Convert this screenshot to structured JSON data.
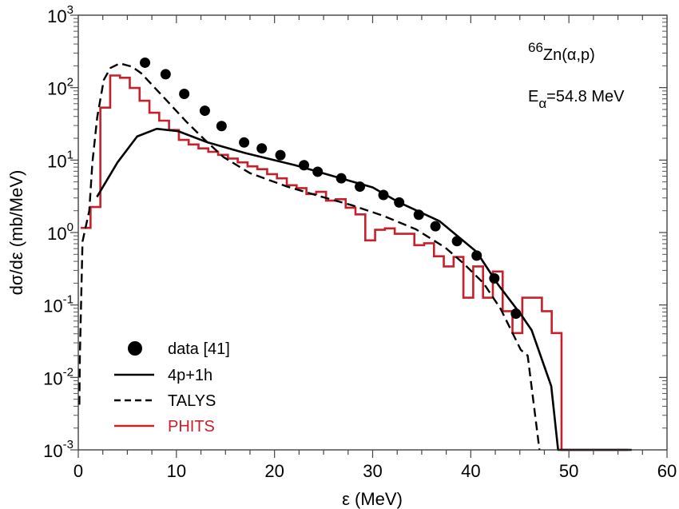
{
  "chart_data": {
    "type": "line",
    "title": "",
    "xlabel": "ε (MeV)",
    "ylabel": "dσ/dε (mb/MeV)",
    "xlim": [
      0,
      60
    ],
    "ylim": [
      0.001,
      1000
    ],
    "yscale": "log",
    "grid": false,
    "x_ticks": [
      0,
      10,
      20,
      30,
      40,
      50,
      60
    ],
    "x_tick_labels": [
      "0",
      "10",
      "20",
      "30",
      "40",
      "50",
      "60"
    ],
    "y_ticks": [
      0.001,
      0.01,
      0.1,
      1,
      10,
      100,
      1000
    ],
    "y_tick_labels": [
      {
        "base": "10",
        "exp": "-3"
      },
      {
        "base": "10",
        "exp": "-2"
      },
      {
        "base": "10",
        "exp": "-1"
      },
      {
        "base": "10",
        "exp": "0"
      },
      {
        "base": "10",
        "exp": "1"
      },
      {
        "base": "10",
        "exp": "2"
      },
      {
        "base": "10",
        "exp": "3"
      }
    ],
    "annotation": {
      "reaction_mass": "66",
      "reaction": "Zn(α,p)",
      "energy_prefix": "E",
      "energy_sub": "α",
      "energy_value": "=54.8 MeV"
    },
    "legend_position": "bottom-left",
    "series": [
      {
        "name": "data [41]",
        "kind": "scatter",
        "color": "#000000",
        "x": [
          6.8,
          8.9,
          10.8,
          12.9,
          14.6,
          16.9,
          18.7,
          20.6,
          23.0,
          24.4,
          26.8,
          28.7,
          31.1,
          32.7,
          34.7,
          36.4,
          38.6,
          40.6,
          42.4,
          44.6
        ],
        "y": [
          221,
          153,
          82,
          48,
          29.5,
          17.5,
          14.5,
          11.7,
          8.5,
          6.9,
          5.6,
          4.3,
          3.3,
          2.6,
          1.76,
          1.22,
          0.76,
          0.48,
          0.233,
          0.076
        ]
      },
      {
        "name": "4p+1h",
        "kind": "line",
        "style": "solid",
        "color": "#000000",
        "x": [
          1.9,
          4.0,
          6.0,
          8.0,
          10.2,
          13.2,
          17.0,
          22.1,
          26.0,
          30.0,
          32.7,
          36.8,
          40.6,
          42.8,
          45.2,
          46.2,
          48.2,
          48.9,
          56.0,
          56.4
        ],
        "y": [
          3.1,
          9.3,
          21.2,
          27,
          25,
          17.5,
          12.5,
          8.5,
          6.0,
          4.2,
          2.6,
          1.44,
          0.54,
          0.19,
          0.071,
          0.045,
          0.0076,
          0.001,
          0.001,
          0.001
        ]
      },
      {
        "name": "TALYS",
        "kind": "line",
        "style": "dashed",
        "color": "#000000",
        "x": [
          0.11,
          0.16,
          0.43,
          1.12,
          1.44,
          1.93,
          2.6,
          3.28,
          4.23,
          5.46,
          6.41,
          8.57,
          11.0,
          12.9,
          14.8,
          17.5,
          21.3,
          24.5,
          27.85,
          31.1,
          34.4,
          37.4,
          39.3,
          41.3,
          43.05,
          45.1,
          45.8,
          47.0
        ],
        "y": [
          0.0042,
          0.019,
          0.75,
          2.0,
          9.3,
          39,
          128,
          187,
          216,
          195,
          158,
          77,
          34,
          19,
          11,
          6.6,
          4.3,
          3.2,
          2.39,
          1.7,
          1.11,
          0.62,
          0.37,
          0.2,
          0.088,
          0.024,
          0.02,
          0.001
        ]
      },
      {
        "name": "PHITS",
        "kind": "histogram",
        "color": "#c8202a",
        "bin_edges": [
          0.25,
          1.25,
          2.25,
          3.25,
          4.25,
          5.25,
          6.25,
          7.25,
          8.25,
          9.25,
          10.25,
          11.25,
          12.25,
          13.25,
          14.25,
          15.25,
          16.25,
          17.25,
          18.25,
          19.25,
          20.25,
          21.25,
          22.25,
          23.25,
          24.25,
          25.25,
          26.25,
          27.25,
          28.25,
          29.25,
          30.25,
          31.25,
          32.25,
          33.25,
          34.25,
          35.25,
          36.25,
          37.25,
          38.25,
          39.25,
          40.25,
          41.25,
          42.25,
          43.25,
          44.25,
          45.25,
          46.25,
          47.25,
          48.25,
          49.25,
          56.0
        ],
        "values": [
          1.16,
          2.25,
          53,
          147,
          137,
          99,
          66,
          45,
          35,
          26,
          19,
          16.4,
          14.5,
          13,
          11.8,
          10.5,
          9.3,
          8.2,
          7.5,
          6.4,
          5.6,
          4.5,
          4.1,
          3.4,
          3.65,
          2.76,
          2.88,
          2.2,
          1.78,
          0.78,
          1.09,
          1.14,
          0.96,
          0.96,
          0.67,
          0.71,
          0.47,
          0.34,
          0.46,
          0.126,
          0.34,
          0.126,
          0.29,
          0.082,
          0.041,
          0.126,
          0.126,
          0.082,
          0.041,
          0.001
        ]
      }
    ]
  }
}
